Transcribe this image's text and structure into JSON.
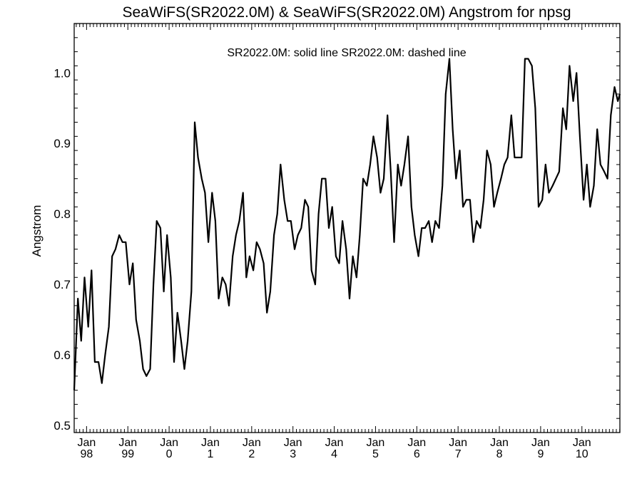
{
  "chart_data": {
    "type": "line",
    "title": "SeaWiFS(SR2022.0M) & SeaWiFS(SR2022.0M)  Angstrom for npsg",
    "legend_text": "SR2022.0M: solid line   SR2022.0M: dashed line",
    "ylabel": "Angstrom",
    "xlabel": "",
    "ylim": [
      0.49,
      1.07
    ],
    "xlim": [
      1997.7,
      2010.92
    ],
    "grid": false,
    "yticks": [
      {
        "value": 0.5,
        "label": "0.5"
      },
      {
        "value": 0.6,
        "label": "0.6"
      },
      {
        "value": 0.7,
        "label": "0.7"
      },
      {
        "value": 0.8,
        "label": "0.8"
      },
      {
        "value": 0.9,
        "label": "0.9"
      },
      {
        "value": 1.0,
        "label": "1.0"
      }
    ],
    "xticks": [
      {
        "value": 1998,
        "label": [
          "Jan",
          "98"
        ]
      },
      {
        "value": 1999,
        "label": [
          "Jan",
          "99"
        ]
      },
      {
        "value": 2000,
        "label": [
          "Jan",
          "0"
        ]
      },
      {
        "value": 2001,
        "label": [
          "Jan",
          "1"
        ]
      },
      {
        "value": 2002,
        "label": [
          "Jan",
          "2"
        ]
      },
      {
        "value": 2003,
        "label": [
          "Jan",
          "3"
        ]
      },
      {
        "value": 2004,
        "label": [
          "Jan",
          "4"
        ]
      },
      {
        "value": 2005,
        "label": [
          "Jan",
          "5"
        ]
      },
      {
        "value": 2006,
        "label": [
          "Jan",
          "6"
        ]
      },
      {
        "value": 2007,
        "label": [
          "Jan",
          "7"
        ]
      },
      {
        "value": 2008,
        "label": [
          "Jan",
          "8"
        ]
      },
      {
        "value": 2009,
        "label": [
          "Jan",
          "9"
        ]
      },
      {
        "value": 2010,
        "label": [
          "Jan",
          "10"
        ]
      }
    ],
    "series": [
      {
        "style": "solid",
        "x": [
          1997.7,
          1997.79,
          1997.87,
          1997.95,
          1998.04,
          1998.12,
          1998.2,
          1998.29,
          1998.37,
          1998.45,
          1998.54,
          1998.62,
          1998.7,
          1998.79,
          1998.87,
          1998.95,
          1999.04,
          1999.12,
          1999.2,
          1999.29,
          1999.37,
          1999.45,
          1999.54,
          1999.62,
          1999.7,
          1999.79,
          1999.87,
          1999.95,
          2000.04,
          2000.12,
          2000.2,
          2000.29,
          2000.37,
          2000.45,
          2000.54,
          2000.62,
          2000.7,
          2000.79,
          2000.87,
          2000.95,
          2001.04,
          2001.12,
          2001.2,
          2001.29,
          2001.37,
          2001.45,
          2001.54,
          2001.62,
          2001.7,
          2001.79,
          2001.87,
          2001.95,
          2002.04,
          2002.12,
          2002.2,
          2002.29,
          2002.37,
          2002.45,
          2002.54,
          2002.62,
          2002.7,
          2002.79,
          2002.87,
          2002.95,
          2003.04,
          2003.12,
          2003.2,
          2003.29,
          2003.37,
          2003.45,
          2003.54,
          2003.62,
          2003.7,
          2003.79,
          2003.87,
          2003.95,
          2004.04,
          2004.12,
          2004.2,
          2004.29,
          2004.37,
          2004.45,
          2004.54,
          2004.62,
          2004.7,
          2004.79,
          2004.87,
          2004.95,
          2005.04,
          2005.12,
          2005.2,
          2005.29,
          2005.37,
          2005.45,
          2005.54,
          2005.62,
          2005.7,
          2005.79,
          2005.87,
          2005.95,
          2006.04,
          2006.12,
          2006.2,
          2006.29,
          2006.37,
          2006.45,
          2006.54,
          2006.62,
          2006.7,
          2006.79,
          2006.87,
          2006.95,
          2007.04,
          2007.12,
          2007.2,
          2007.29,
          2007.37,
          2007.45,
          2007.54,
          2007.62,
          2007.7,
          2007.79,
          2007.87,
          2007.95,
          2008.04,
          2008.12,
          2008.2,
          2008.29,
          2008.37,
          2008.45,
          2008.54,
          2008.62,
          2008.7,
          2008.79,
          2008.87,
          2008.95,
          2009.04,
          2009.12,
          2009.2,
          2009.29,
          2009.37,
          2009.45,
          2009.54,
          2009.62,
          2009.7,
          2009.79,
          2009.87,
          2009.95,
          2010.04,
          2010.12,
          2010.2,
          2010.29,
          2010.37,
          2010.45,
          2010.54,
          2010.62,
          2010.7,
          2010.79,
          2010.87,
          2010.92
        ],
        "y": [
          0.55,
          0.68,
          0.62,
          0.71,
          0.64,
          0.72,
          0.59,
          0.59,
          0.56,
          0.6,
          0.64,
          0.74,
          0.75,
          0.77,
          0.76,
          0.76,
          0.7,
          0.73,
          0.65,
          0.62,
          0.58,
          0.57,
          0.58,
          0.7,
          0.79,
          0.78,
          0.69,
          0.77,
          0.71,
          0.59,
          0.66,
          0.62,
          0.58,
          0.62,
          0.69,
          0.93,
          0.88,
          0.85,
          0.83,
          0.76,
          0.83,
          0.79,
          0.68,
          0.71,
          0.7,
          0.67,
          0.74,
          0.77,
          0.79,
          0.83,
          0.71,
          0.74,
          0.72,
          0.76,
          0.75,
          0.73,
          0.66,
          0.69,
          0.77,
          0.8,
          0.87,
          0.82,
          0.79,
          0.79,
          0.75,
          0.77,
          0.78,
          0.82,
          0.81,
          0.72,
          0.7,
          0.8,
          0.85,
          0.85,
          0.78,
          0.81,
          0.74,
          0.73,
          0.79,
          0.75,
          0.68,
          0.74,
          0.71,
          0.77,
          0.85,
          0.84,
          0.87,
          0.91,
          0.88,
          0.83,
          0.85,
          0.94,
          0.86,
          0.76,
          0.87,
          0.84,
          0.87,
          0.91,
          0.81,
          0.77,
          0.74,
          0.78,
          0.78,
          0.79,
          0.76,
          0.79,
          0.78,
          0.84,
          0.97,
          1.02,
          0.92,
          0.85,
          0.89,
          0.81,
          0.82,
          0.82,
          0.76,
          0.79,
          0.78,
          0.82,
          0.89,
          0.87,
          0.81,
          0.83,
          0.85,
          0.87,
          0.88,
          0.94,
          0.88,
          0.88,
          0.88,
          1.02,
          1.02,
          1.01,
          0.95,
          0.81,
          0.82,
          0.87,
          0.83,
          0.84,
          0.85,
          0.86,
          0.95,
          0.92,
          1.01,
          0.96,
          1.0,
          0.91,
          0.82,
          0.87,
          0.81,
          0.84,
          0.92,
          0.87,
          0.86,
          0.85,
          0.94,
          0.98,
          0.96,
          0.97
        ]
      }
    ]
  }
}
